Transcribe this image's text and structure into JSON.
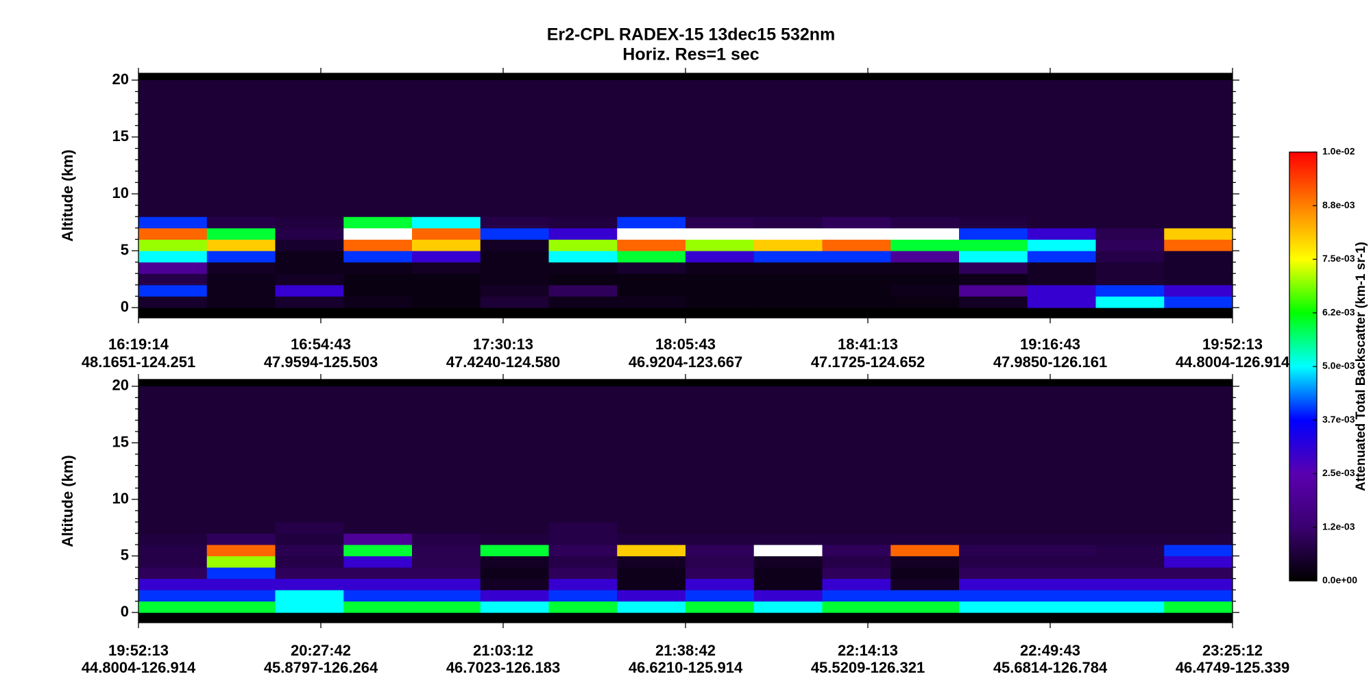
{
  "figure": {
    "title": "Er2-CPL  RADEX-15  13dec15  532nm",
    "subtitle": "Horiz. Res=1 sec"
  },
  "colorbar": {
    "label": "Attenuated Total Backscatter (km-1 sr-1)",
    "clim": [
      0,
      0.01
    ],
    "ticks": [
      {
        "value": 0,
        "label": "0.0e+00"
      },
      {
        "value": 0.00125,
        "label": "1.2e-03"
      },
      {
        "value": 0.0025,
        "label": "2.5e-03"
      },
      {
        "value": 0.00375,
        "label": "3.7e-03"
      },
      {
        "value": 0.005,
        "label": "5.0e-03"
      },
      {
        "value": 0.00625,
        "label": "6.2e-03"
      },
      {
        "value": 0.0075,
        "label": "7.5e-03"
      },
      {
        "value": 0.00875,
        "label": "8.8e-03"
      },
      {
        "value": 0.01,
        "label": "1.0e-02"
      }
    ],
    "colormap": [
      "#000000",
      "#3a0070",
      "#5a00b0",
      "#0000ff",
      "#00ffff",
      "#00ff00",
      "#ffff00",
      "#ff8000",
      "#ff0000"
    ],
    "over_color": "#ffffff"
  },
  "chart_data": [
    {
      "type": "heatmap",
      "ylabel": "Altitude (km)",
      "ylim": [
        -0.9,
        20.6
      ],
      "yticks": [
        0,
        5,
        10,
        15,
        20
      ],
      "yminorticks": [
        1,
        2,
        3,
        4,
        6,
        7,
        8,
        9,
        11,
        12,
        13,
        14,
        16,
        17,
        18,
        19
      ],
      "categories": [
        "16:19:14",
        "16:54:43",
        "17:30:13",
        "18:05:43",
        "18:41:13",
        "19:16:43",
        "19:52:13"
      ],
      "locations": [
        "48.1651-124.251",
        "47.9594-125.503",
        "47.4240-124.580",
        "46.9204-123.667",
        "47.1725-124.652",
        "47.9850-126.161",
        "44.8004-126.914"
      ],
      "ybins": [
        -1,
        0,
        1,
        2,
        3,
        4,
        5,
        6,
        7,
        8,
        20
      ],
      "values": [
        [
          0,
          0,
          0,
          0,
          0,
          0,
          0,
          0,
          0,
          0,
          0,
          0,
          0,
          0,
          0,
          0
        ],
        [
          0.0005,
          0.0003,
          0.0005,
          0.0003,
          0.0002,
          0.0006,
          0.0003,
          0.0003,
          0.0002,
          0.0002,
          0.0002,
          0.0002,
          0.0004,
          0.003,
          0.005,
          0.004
        ],
        [
          0.004,
          0.0003,
          0.003,
          0.0002,
          0.0002,
          0.0004,
          0.001,
          0.0002,
          0.0002,
          0.0002,
          0.0002,
          0.0003,
          0.002,
          0.003,
          0.004,
          0.003
        ],
        [
          0.0008,
          0.0003,
          0.0004,
          0.0002,
          0.0002,
          0.0003,
          0.0002,
          0.0002,
          0.0002,
          0.0002,
          0.0002,
          0.0002,
          0.0003,
          0.0004,
          0.0006,
          0.0005
        ],
        [
          0.002,
          0.0004,
          0.0003,
          0.0003,
          0.0004,
          0.0003,
          0.0003,
          0.0005,
          0.0003,
          0.0003,
          0.0003,
          0.0003,
          0.001,
          0.0004,
          0.0006,
          0.0005
        ],
        [
          0.005,
          0.004,
          0.0003,
          0.004,
          0.003,
          0.0003,
          0.005,
          0.006,
          0.003,
          0.004,
          0.004,
          0.002,
          0.005,
          0.004,
          0.0008,
          0.0005
        ],
        [
          0.007,
          0.008,
          0.0005,
          0.009,
          0.008,
          0.0004,
          0.007,
          0.009,
          0.007,
          0.008,
          0.009,
          0.006,
          0.006,
          0.005,
          0.001,
          0.009
        ],
        [
          0.009,
          0.006,
          0.0008,
          0.011,
          0.009,
          0.004,
          0.003,
          0.011,
          0.011,
          0.011,
          0.011,
          0.011,
          0.004,
          0.003,
          0.0009,
          0.008
        ],
        [
          0.004,
          0.0008,
          0.0007,
          0.006,
          0.005,
          0.0008,
          0.0007,
          0.004,
          0.0009,
          0.0008,
          0.001,
          0.0008,
          0.0007,
          0.0006,
          0.0006,
          0.0006
        ],
        [
          0.0006,
          0.0006,
          0.0006,
          0.0006,
          0.0006,
          0.0006,
          0.0006,
          0.0006,
          0.0006,
          0.0006,
          0.0006,
          0.0006,
          0.0006,
          0.0006,
          0.0006,
          0.0006
        ]
      ]
    },
    {
      "type": "heatmap",
      "ylabel": "Altitude (km)",
      "ylim": [
        -0.9,
        20.6
      ],
      "yticks": [
        0,
        5,
        10,
        15,
        20
      ],
      "yminorticks": [
        1,
        2,
        3,
        4,
        6,
        7,
        8,
        9,
        11,
        12,
        13,
        14,
        16,
        17,
        18,
        19
      ],
      "categories": [
        "19:52:13",
        "20:27:42",
        "21:03:12",
        "21:38:42",
        "22:14:13",
        "22:49:43",
        "23:25:12"
      ],
      "locations": [
        "44.8004-126.914",
        "45.8797-126.264",
        "46.7023-126.183",
        "46.6210-125.914",
        "45.5209-126.321",
        "45.6814-126.784",
        "46.4749-125.339"
      ],
      "ybins": [
        -1,
        0,
        1,
        2,
        3,
        4,
        5,
        6,
        7,
        8,
        20
      ],
      "values": [
        [
          0,
          0,
          0,
          0,
          0,
          0,
          0,
          0,
          0,
          0,
          0,
          0,
          0,
          0,
          0,
          0
        ],
        [
          0.006,
          0.006,
          0.005,
          0.006,
          0.006,
          0.005,
          0.006,
          0.005,
          0.006,
          0.005,
          0.006,
          0.006,
          0.005,
          0.005,
          0.005,
          0.006
        ],
        [
          0.004,
          0.004,
          0.005,
          0.004,
          0.004,
          0.003,
          0.004,
          0.003,
          0.004,
          0.003,
          0.004,
          0.004,
          0.004,
          0.004,
          0.004,
          0.004
        ],
        [
          0.003,
          0.003,
          0.003,
          0.003,
          0.003,
          0.0004,
          0.003,
          0.0003,
          0.003,
          0.0003,
          0.003,
          0.0004,
          0.003,
          0.003,
          0.003,
          0.003
        ],
        [
          0.001,
          0.004,
          0.001,
          0.001,
          0.001,
          0.0003,
          0.001,
          0.0003,
          0.001,
          0.0003,
          0.001,
          0.0003,
          0.001,
          0.001,
          0.001,
          0.001
        ],
        [
          0.0008,
          0.007,
          0.0008,
          0.003,
          0.0009,
          0.0004,
          0.0008,
          0.0004,
          0.0009,
          0.0004,
          0.0008,
          0.0004,
          0.0008,
          0.0008,
          0.0008,
          0.003
        ],
        [
          0.0008,
          0.009,
          0.0009,
          0.006,
          0.0009,
          0.006,
          0.001,
          0.008,
          0.001,
          0.011,
          0.001,
          0.009,
          0.0009,
          0.0009,
          0.0008,
          0.004
        ],
        [
          0.0007,
          0.001,
          0.0007,
          0.002,
          0.0008,
          0.0007,
          0.0008,
          0.0007,
          0.0007,
          0.0007,
          0.0007,
          0.0007,
          0.0007,
          0.0007,
          0.0007,
          0.0007
        ],
        [
          0.0006,
          0.0006,
          0.0008,
          0.0006,
          0.0006,
          0.0006,
          0.0008,
          0.0006,
          0.0006,
          0.0006,
          0.0006,
          0.0006,
          0.0006,
          0.0006,
          0.0006,
          0.0006
        ],
        [
          0.0006,
          0.0006,
          0.0006,
          0.0006,
          0.0006,
          0.0006,
          0.0006,
          0.0006,
          0.0006,
          0.0006,
          0.0006,
          0.0006,
          0.0006,
          0.0006,
          0.0006,
          0.0006
        ]
      ]
    }
  ]
}
